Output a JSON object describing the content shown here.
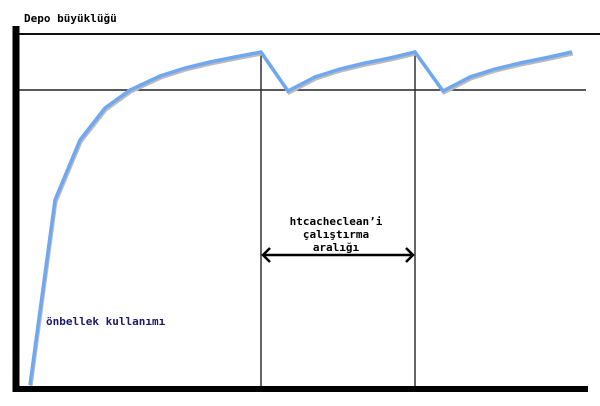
{
  "title": "Depo büyüklüğü",
  "curve_label": "önbellek kullanımı",
  "interval_label": [
    "htcacheclean’i",
    "çalıştırma",
    "aralığı"
  ],
  "colors": {
    "curve": "#6fa8f0",
    "axes": "#000000",
    "curve_label": "#1a1a6e"
  }
}
